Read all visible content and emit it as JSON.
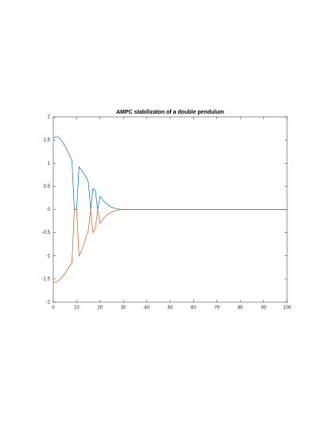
{
  "chart_data": {
    "type": "line",
    "title": "AMPC stabilizaton of a double pendulum",
    "x": [
      0,
      1,
      2,
      3,
      4,
      5,
      6,
      7,
      8,
      9,
      10,
      11,
      12,
      13,
      14,
      15,
      16,
      17,
      18,
      19,
      20,
      21,
      22,
      23,
      24,
      25,
      26,
      27,
      28,
      29,
      30,
      100
    ],
    "series": [
      {
        "color": "#0072bd",
        "values": [
          1.55,
          1.57,
          1.57,
          1.52,
          1.45,
          1.37,
          1.27,
          1.17,
          1.05,
          0,
          0,
          0.92,
          0.85,
          0.78,
          0.7,
          0.6,
          0,
          0.45,
          0.4,
          0,
          0.28,
          0.22,
          0.16,
          0.11,
          0.08,
          0.05,
          0.03,
          0.02,
          0.01,
          0,
          0,
          0
        ]
      },
      {
        "color": "#d95319",
        "values": [
          -1.57,
          -1.57,
          -1.55,
          -1.5,
          -1.45,
          -1.38,
          -1.3,
          -1.22,
          -1.15,
          0,
          0,
          -1.0,
          -0.9,
          -0.75,
          -0.6,
          -0.45,
          0,
          -0.5,
          -0.4,
          0,
          -0.3,
          -0.22,
          -0.16,
          -0.11,
          -0.08,
          -0.05,
          -0.03,
          -0.02,
          -0.01,
          0,
          0,
          0
        ]
      }
    ],
    "xlim": [
      0,
      100
    ],
    "xticks": [
      0,
      10,
      20,
      30,
      40,
      50,
      60,
      70,
      80,
      90,
      100
    ],
    "ylim": [
      -2,
      2
    ],
    "yticks": [
      -2,
      -1.5,
      -1,
      -0.5,
      0,
      0.5,
      1,
      1.5,
      2
    ],
    "grid": false
  }
}
